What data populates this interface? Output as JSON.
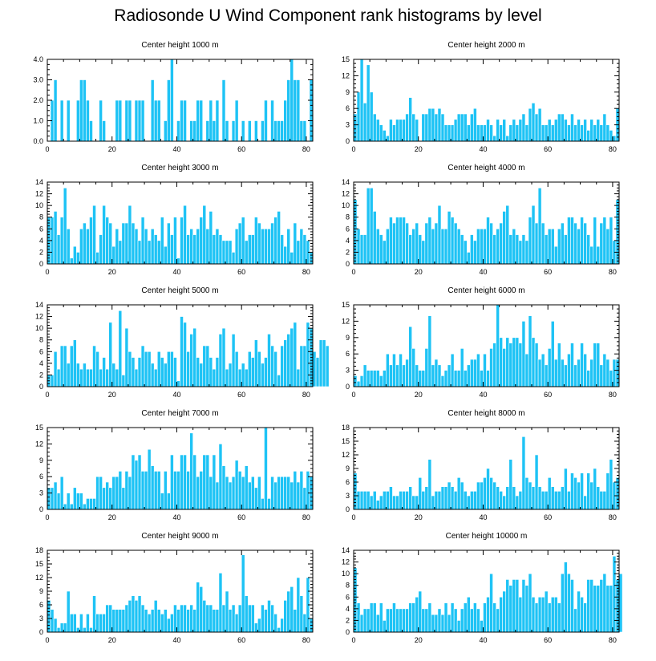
{
  "title": "Radiosonde U Wind Component rank histograms by level",
  "colors": {
    "bar": "#1ec3f5",
    "bar_edge": "#ffffff",
    "axis": "#000000"
  },
  "chart_data": [
    {
      "type": "bar",
      "title": "Center height 1000 m",
      "x_start": 0,
      "xlim": [
        0,
        82
      ],
      "ylim": [
        0,
        4.0
      ],
      "xticks": [
        0,
        20,
        40,
        60,
        80
      ],
      "xtick_labels": [
        "0",
        "20",
        "40",
        "60",
        "80"
      ],
      "yticks": [
        0,
        1,
        2,
        3,
        4
      ],
      "ytick_labels": [
        "0.0",
        "1.0",
        "2.0",
        "3.0",
        "4.0"
      ],
      "values": [
        0,
        2,
        3,
        0,
        2,
        0,
        2,
        0,
        0,
        2,
        3,
        3,
        2,
        1,
        0,
        0,
        2,
        1,
        0,
        0,
        0,
        2,
        2,
        0,
        2,
        2,
        0,
        2,
        2,
        2,
        0,
        0,
        3,
        2,
        2,
        0,
        1,
        3,
        4,
        0,
        1,
        2,
        2,
        0,
        1,
        1,
        2,
        2,
        0,
        1,
        2,
        1,
        2,
        0,
        3,
        1,
        0,
        1,
        2,
        0,
        1,
        0,
        1,
        0,
        1,
        0,
        1,
        2,
        0,
        2,
        1,
        1,
        1,
        2,
        3,
        4,
        3,
        3,
        1,
        1,
        0,
        3
      ]
    },
    {
      "type": "bar",
      "title": "Center height 2000 m",
      "x_start": 0,
      "xlim": [
        0,
        82
      ],
      "ylim": [
        0,
        15
      ],
      "xticks": [
        0,
        20,
        40,
        60,
        80
      ],
      "xtick_labels": [
        "0",
        "20",
        "40",
        "60",
        "80"
      ],
      "yticks": [
        0,
        3,
        6,
        9,
        12,
        15
      ],
      "ytick_labels": [
        "0",
        "3",
        "6",
        "9",
        "12",
        "15"
      ],
      "values": [
        5,
        9,
        15,
        7,
        14,
        9,
        5,
        4,
        3,
        2,
        1,
        4,
        3,
        4,
        4,
        4,
        5,
        8,
        5,
        4,
        0,
        5,
        5,
        6,
        6,
        5,
        6,
        5,
        3,
        3,
        3,
        4,
        5,
        5,
        5,
        3,
        5,
        6,
        3,
        3,
        3,
        4,
        3,
        1,
        4,
        3,
        4,
        1,
        3,
        4,
        3,
        4,
        5,
        3,
        6,
        7,
        5,
        6,
        3,
        3,
        4,
        3,
        4,
        5,
        5,
        4,
        3,
        5,
        3,
        4,
        3,
        4,
        2,
        4,
        3,
        4,
        3,
        5,
        3,
        2,
        1,
        6
      ]
    },
    {
      "type": "bar",
      "title": "Center height 3000 m",
      "x_start": 0,
      "xlim": [
        0,
        82
      ],
      "ylim": [
        0,
        14
      ],
      "xticks": [
        0,
        20,
        40,
        60,
        80
      ],
      "xtick_labels": [
        "0",
        "20",
        "40",
        "60",
        "80"
      ],
      "yticks": [
        0,
        2,
        4,
        6,
        8,
        10,
        12,
        14
      ],
      "ytick_labels": [
        "0",
        "2",
        "4",
        "6",
        "8",
        "10",
        "12",
        "14"
      ],
      "values": [
        8,
        8,
        9,
        5,
        8,
        13,
        6,
        1,
        3,
        2,
        6,
        7,
        6,
        8,
        10,
        2,
        5,
        10,
        8,
        7,
        3,
        6,
        4,
        7,
        7,
        10,
        7,
        6,
        4,
        8,
        6,
        4,
        6,
        5,
        4,
        8,
        3,
        7,
        5,
        8,
        1,
        8,
        10,
        5,
        6,
        5,
        6,
        8,
        10,
        6,
        9,
        5,
        6,
        5,
        4,
        4,
        4,
        2,
        6,
        7,
        8,
        4,
        5,
        5,
        8,
        7,
        6,
        6,
        6,
        7,
        8,
        9,
        5,
        3,
        6,
        2,
        7,
        4,
        6,
        5,
        4,
        2
      ]
    },
    {
      "type": "bar",
      "title": "Center height 4000 m",
      "x_start": 0,
      "xlim": [
        0,
        82
      ],
      "ylim": [
        0,
        14
      ],
      "xticks": [
        0,
        20,
        40,
        60,
        80
      ],
      "xtick_labels": [
        "0",
        "20",
        "40",
        "60",
        "80"
      ],
      "yticks": [
        0,
        2,
        4,
        6,
        8,
        10,
        12,
        14
      ],
      "ytick_labels": [
        "0",
        "2",
        "4",
        "6",
        "8",
        "10",
        "12",
        "14"
      ],
      "values": [
        11,
        6,
        5,
        5,
        13,
        13,
        9,
        6,
        5,
        4,
        6,
        8,
        7,
        8,
        8,
        8,
        7,
        5,
        6,
        7,
        5,
        4,
        7,
        8,
        6,
        7,
        10,
        6,
        6,
        9,
        8,
        7,
        6,
        5,
        4,
        2,
        5,
        4,
        6,
        6,
        6,
        8,
        7,
        5,
        6,
        7,
        9,
        10,
        5,
        6,
        5,
        4,
        5,
        4,
        8,
        10,
        7,
        13,
        7,
        5,
        6,
        6,
        3,
        6,
        7,
        5,
        8,
        8,
        7,
        6,
        8,
        7,
        5,
        3,
        8,
        3,
        7,
        8,
        6,
        8,
        4,
        11
      ]
    },
    {
      "type": "bar",
      "title": "Center height 5000 m",
      "x_start": 0,
      "xlim": [
        0,
        82
      ],
      "ylim": [
        0,
        14
      ],
      "xticks": [
        0,
        20,
        40,
        60,
        80
      ],
      "xtick_labels": [
        "0",
        "20",
        "40",
        "60",
        "80"
      ],
      "yticks": [
        0,
        2,
        4,
        6,
        8,
        10,
        12,
        14
      ],
      "ytick_labels": [
        "0",
        "2",
        "4",
        "6",
        "8",
        "10",
        "12",
        "14"
      ],
      "values": [
        2,
        2,
        6,
        3,
        7,
        7,
        4,
        7,
        8,
        4,
        3,
        4,
        3,
        3,
        7,
        6,
        3,
        5,
        3,
        11,
        4,
        3,
        13,
        2,
        10,
        6,
        5,
        3,
        5,
        7,
        6,
        6,
        4,
        3,
        6,
        5,
        4,
        6,
        6,
        5,
        1,
        12,
        11,
        6,
        9,
        10,
        5,
        4,
        7,
        7,
        5,
        3,
        5,
        9,
        10,
        3,
        4,
        9,
        6,
        3,
        4,
        3,
        6,
        5,
        8,
        6,
        4,
        5,
        9,
        7,
        6,
        2,
        7,
        8,
        9,
        10,
        11,
        3,
        7,
        7,
        11,
        10,
        6,
        5,
        8,
        8,
        7
      ]
    },
    {
      "type": "bar",
      "title": "Center height 6000 m",
      "x_start": 0,
      "xlim": [
        0,
        82
      ],
      "ylim": [
        0,
        15
      ],
      "xticks": [
        0,
        20,
        40,
        60,
        80
      ],
      "xtick_labels": [
        "0",
        "20",
        "40",
        "60",
        "80"
      ],
      "yticks": [
        0,
        3,
        6,
        9,
        12,
        15
      ],
      "ytick_labels": [
        "0",
        "3",
        "6",
        "9",
        "12",
        "15"
      ],
      "values": [
        2,
        1,
        2,
        4,
        3,
        3,
        3,
        3,
        2,
        3,
        6,
        4,
        6,
        4,
        6,
        4,
        5,
        11,
        7,
        4,
        3,
        3,
        7,
        13,
        4,
        5,
        4,
        2,
        3,
        4,
        6,
        3,
        3,
        7,
        3,
        4,
        5,
        5,
        6,
        3,
        6,
        3,
        7,
        8,
        15,
        9,
        7,
        9,
        8,
        9,
        9,
        8,
        12,
        6,
        13,
        9,
        8,
        5,
        6,
        4,
        7,
        12,
        5,
        8,
        5,
        4,
        6,
        8,
        4,
        5,
        8,
        6,
        3,
        5,
        8,
        8,
        4,
        6,
        5,
        3,
        5,
        5
      ]
    },
    {
      "type": "bar",
      "title": "Center height 7000 m",
      "x_start": 0,
      "xlim": [
        0,
        82
      ],
      "ylim": [
        0,
        15
      ],
      "xticks": [
        0,
        20,
        40,
        60,
        80
      ],
      "xtick_labels": [
        "0",
        "20",
        "40",
        "60",
        "80"
      ],
      "yticks": [
        0,
        3,
        6,
        9,
        12,
        15
      ],
      "ytick_labels": [
        "0",
        "3",
        "6",
        "9",
        "12",
        "15"
      ],
      "values": [
        4,
        4,
        5,
        3,
        6,
        1,
        3,
        1,
        4,
        3,
        3,
        1,
        2,
        2,
        2,
        6,
        6,
        4,
        5,
        4,
        6,
        6,
        7,
        4,
        7,
        6,
        10,
        9,
        10,
        7,
        7,
        11,
        8,
        7,
        7,
        3,
        7,
        3,
        10,
        7,
        7,
        10,
        10,
        7,
        14,
        10,
        6,
        7,
        10,
        10,
        6,
        10,
        5,
        12,
        8,
        6,
        5,
        6,
        9,
        7,
        6,
        8,
        5,
        6,
        4,
        6,
        2,
        15,
        2,
        6,
        5,
        6,
        6,
        6,
        6,
        5,
        7,
        5,
        7,
        4,
        7,
        6
      ]
    },
    {
      "type": "bar",
      "title": "Center height 8000 m",
      "x_start": 0,
      "xlim": [
        0,
        82
      ],
      "ylim": [
        0,
        18
      ],
      "xticks": [
        0,
        20,
        40,
        60,
        80
      ],
      "xtick_labels": [
        "0",
        "20",
        "40",
        "60",
        "80"
      ],
      "yticks": [
        0,
        3,
        6,
        9,
        12,
        15,
        18
      ],
      "ytick_labels": [
        "0",
        "3",
        "6",
        "9",
        "12",
        "15",
        "18"
      ],
      "values": [
        8,
        4,
        4,
        4,
        4,
        3,
        4,
        2,
        3,
        4,
        4,
        5,
        3,
        3,
        4,
        4,
        4,
        5,
        3,
        3,
        7,
        4,
        5,
        11,
        3,
        4,
        4,
        5,
        5,
        6,
        5,
        4,
        7,
        6,
        4,
        3,
        4,
        4,
        6,
        6,
        7,
        9,
        7,
        6,
        5,
        4,
        3,
        5,
        11,
        5,
        3,
        4,
        16,
        7,
        6,
        5,
        12,
        5,
        4,
        4,
        7,
        5,
        4,
        4,
        5,
        9,
        4,
        8,
        7,
        6,
        8,
        3,
        8,
        6,
        9,
        5,
        4,
        4,
        8,
        11,
        6,
        7
      ]
    },
    {
      "type": "bar",
      "title": "Center height 9000 m",
      "x_start": 0,
      "xlim": [
        0,
        82
      ],
      "ylim": [
        0,
        18
      ],
      "xticks": [
        0,
        20,
        40,
        60,
        80
      ],
      "xtick_labels": [
        "0",
        "20",
        "40",
        "60",
        "80"
      ],
      "yticks": [
        0,
        3,
        6,
        9,
        12,
        15,
        18
      ],
      "ytick_labels": [
        "0",
        "3",
        "6",
        "9",
        "12",
        "15",
        "18"
      ],
      "values": [
        7,
        5,
        3,
        1,
        2,
        2,
        9,
        4,
        4,
        1,
        4,
        1,
        4,
        1,
        8,
        4,
        4,
        4,
        6,
        6,
        5,
        5,
        5,
        5,
        6,
        7,
        8,
        7,
        8,
        6,
        5,
        4,
        5,
        7,
        5,
        4,
        5,
        3,
        4,
        6,
        5,
        6,
        6,
        5,
        6,
        5,
        11,
        10,
        7,
        6,
        6,
        5,
        5,
        13,
        6,
        9,
        5,
        6,
        4,
        6,
        17,
        8,
        6,
        6,
        2,
        3,
        6,
        5,
        7,
        6,
        4,
        1,
        3,
        7,
        9,
        10,
        5,
        12,
        8,
        4,
        12,
        3
      ]
    },
    {
      "type": "bar",
      "title": "Center height 10000 m",
      "x_start": 0,
      "xlim": [
        0,
        82
      ],
      "ylim": [
        0,
        14
      ],
      "xticks": [
        0,
        20,
        40,
        60,
        80
      ],
      "xtick_labels": [
        "0",
        "20",
        "40",
        "60",
        "80"
      ],
      "yticks": [
        0,
        2,
        4,
        6,
        8,
        10,
        12,
        14
      ],
      "ytick_labels": [
        "0",
        "2",
        "4",
        "6",
        "8",
        "10",
        "12",
        "14"
      ],
      "values": [
        11,
        5,
        3,
        4,
        4,
        5,
        5,
        3,
        5,
        2,
        4,
        4,
        5,
        4,
        4,
        4,
        4,
        5,
        5,
        6,
        7,
        4,
        4,
        5,
        3,
        3,
        4,
        3,
        5,
        3,
        5,
        4,
        2,
        4,
        5,
        6,
        4,
        5,
        4,
        2,
        5,
        6,
        10,
        5,
        4,
        6,
        7,
        9,
        8,
        9,
        9,
        6,
        9,
        8,
        10,
        6,
        5,
        6,
        6,
        7,
        5,
        6,
        6,
        5,
        10,
        12,
        10,
        9,
        4,
        7,
        6,
        5,
        9,
        9,
        8,
        8,
        9,
        10,
        8,
        8,
        13,
        9,
        10
      ]
    }
  ]
}
